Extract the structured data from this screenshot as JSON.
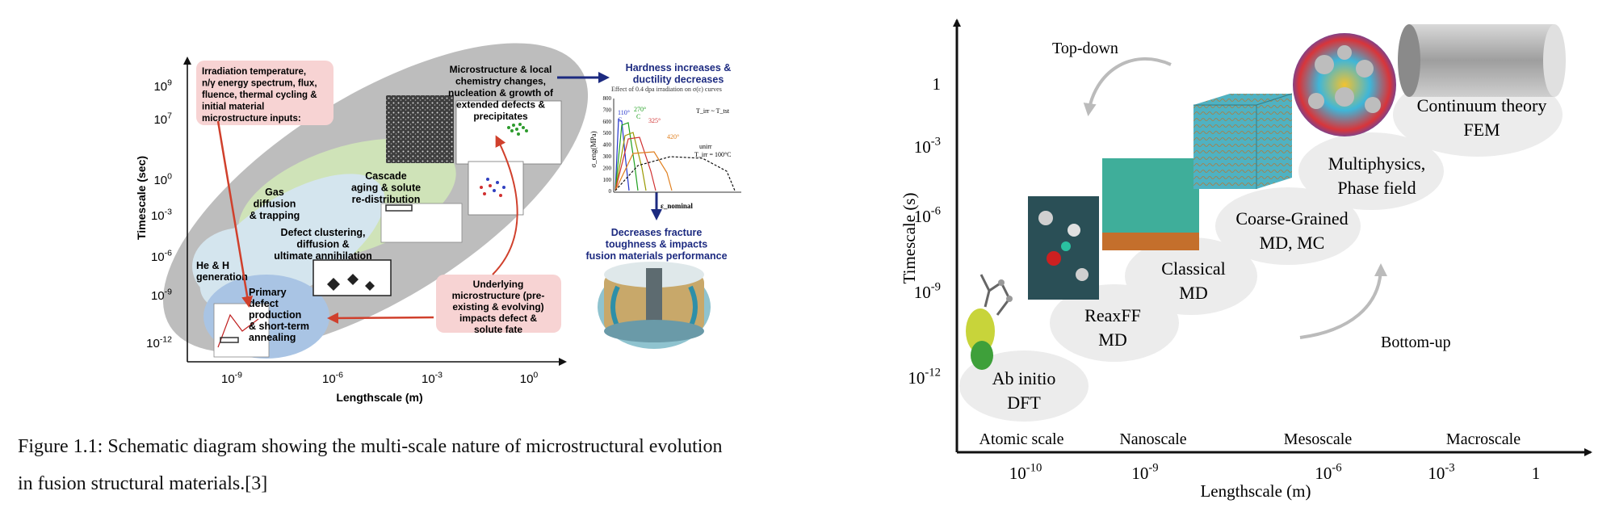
{
  "left_panel": {
    "y_axis_label": "Timescale (sec)",
    "x_axis_label": "Lengthscale (m)",
    "y_ticks": [
      {
        "base": "10",
        "exp": "9"
      },
      {
        "base": "10",
        "exp": "7"
      },
      {
        "base": "10",
        "exp": "0"
      },
      {
        "base": "10",
        "exp": "-3"
      },
      {
        "base": "10",
        "exp": "-6"
      },
      {
        "base": "10",
        "exp": "-9"
      },
      {
        "base": "10",
        "exp": "-12"
      }
    ],
    "x_ticks": [
      {
        "base": "10",
        "exp": "-9"
      },
      {
        "base": "10",
        "exp": "-6"
      },
      {
        "base": "10",
        "exp": "-3"
      },
      {
        "base": "10",
        "exp": "0"
      }
    ],
    "inputs_box": [
      "Irradiation temperature,",
      "n/γ energy spectrum, flux,",
      "fluence, thermal cycling &",
      "initial material",
      "microstructure inputs:"
    ],
    "microstructure_text": [
      "Microstructure & local",
      "chemistry changes,",
      "nucleation & growth of",
      "extended defects &",
      "precipitates"
    ],
    "cascade_text": [
      "Cascade",
      "aging & solute",
      "re-distribution"
    ],
    "gas_text": [
      "Gas",
      "diffusion",
      "& trapping"
    ],
    "defect_text": [
      "Defect clustering,",
      "diffusion &",
      "ultimate annihilation"
    ],
    "he_text": [
      "He & H",
      "generation"
    ],
    "primary_text": [
      "Primary",
      "defect",
      "production",
      "& short-term",
      "annealing"
    ],
    "underlying_box": [
      "Underlying",
      "microstructure (pre-",
      "existing & evolving)",
      "impacts defect &",
      "solute fate"
    ],
    "hardness_text": [
      "Hardness increases &",
      "ductility decreases"
    ],
    "fracture_text": [
      "Decreases fracture",
      "toughness & impacts",
      "fusion materials performance"
    ],
    "stress_strain_caption": "Effect of 0.4 dpa irradiation on σ(ε) curves",
    "stress_axis_label": "σ_eng(MPa)",
    "strain_axis_label": "ε_nominal",
    "temperature_labels": [
      "110°",
      "270°",
      "325°",
      "420°"
    ],
    "temperature_c_label": "C",
    "tirr_label": "T_irr ~ T_tst",
    "unirr_label": "unirr",
    "tirr_100_label": "T_irr = 100°C",
    "stress_ticks": [
      "800",
      "700",
      "600",
      "500",
      "400",
      "300",
      "200",
      "100",
      "0"
    ],
    "colors": {
      "gray_oval": "#bdbdbd",
      "green_oval": "#cfe3b8",
      "light_blue_oval": "#d4e5ee",
      "blue_oval": "#a9c4e4",
      "pink_box": "#f7d3d3",
      "red_arrow": "#d0402c",
      "navy": "#1c2a80"
    }
  },
  "caption": {
    "lines": [
      "Figure 1.1:  Schematic diagram showing the multi-scale nature of microstructural evolution",
      "in fusion structural materials.[3]"
    ]
  },
  "right_panel": {
    "y_axis_label": "Timescale (s)",
    "x_axis_label": "Lengthscale (m)",
    "y_ticks": [
      {
        "base": "1",
        "exp": ""
      },
      {
        "base": "10",
        "exp": "-3"
      },
      {
        "base": "10",
        "exp": "-6"
      },
      {
        "base": "10",
        "exp": "-9"
      },
      {
        "base": "10",
        "exp": "-12"
      }
    ],
    "x_ticks": [
      {
        "base": "10",
        "exp": "-10"
      },
      {
        "base": "10",
        "exp": "-9"
      },
      {
        "base": "10",
        "exp": "-6"
      },
      {
        "base": "10",
        "exp": "-3"
      },
      {
        "base": "1",
        "exp": ""
      }
    ],
    "scale_labels": [
      "Atomic scale",
      "Nanoscale",
      "Mesoscale",
      "Macroscale"
    ],
    "top_down": "Top-down",
    "bottom_up": "Bottom-up",
    "methods": [
      [
        "Ab initio",
        "DFT"
      ],
      [
        "ReaxFF",
        "MD"
      ],
      [
        "Classical",
        "MD"
      ],
      [
        "Coarse-Grained",
        "MD, MC"
      ],
      [
        "Multiphysics,",
        "Phase field"
      ],
      [
        "Continuum theory",
        "FEM"
      ]
    ]
  }
}
